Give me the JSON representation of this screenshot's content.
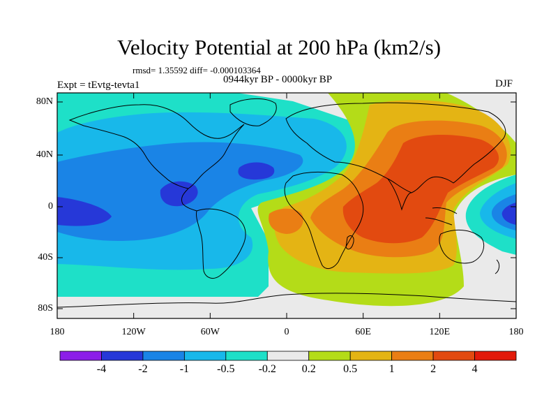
{
  "title": "Velocity Potential at 200 hPa (km2/s)",
  "stats_line": "rmsd= 1.35592 diff= -0.000103364",
  "period": "0944kyr BP - 0000kyr BP",
  "experiment": "Expt = tEvtg-tevta1",
  "season": "DJF",
  "lat_ticks": [
    "80N",
    "40N",
    "0",
    "40S",
    "80S"
  ],
  "lon_ticks": [
    "180",
    "120W",
    "60W",
    "0",
    "60E",
    "120E",
    "180"
  ],
  "colorbar": {
    "labels": [
      "-4",
      "-2",
      "-1",
      "-0.5",
      "-0.2",
      "0.2",
      "0.5",
      "1",
      "2",
      "4"
    ],
    "colors": [
      "#8c1ee8",
      "#2638d8",
      "#1a84e6",
      "#18b8ea",
      "#1ee0c8",
      "#eaeaea",
      "#b4dc18",
      "#e4b414",
      "#ea7e14",
      "#e24a10",
      "#e21a0a"
    ]
  },
  "field_colors": {
    "neg3": "#2638d8",
    "neg2": "#1a84e6",
    "neg1": "#18b8ea",
    "neg0": "#1ee0c8",
    "zero": "#eaeaea",
    "pos0": "#b4dc18",
    "pos1": "#e4b414",
    "pos2": "#ea7e14",
    "pos3": "#e24a10"
  }
}
